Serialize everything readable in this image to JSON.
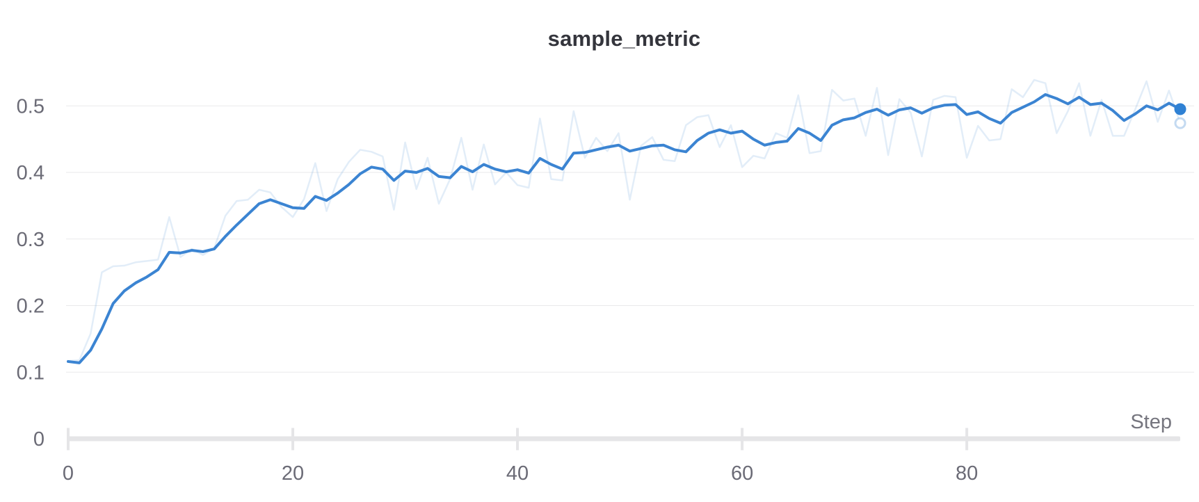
{
  "title": "sample_metric",
  "x_axis": {
    "label": "Step",
    "tick_values": [
      0,
      20,
      40,
      60,
      80
    ],
    "tick_labels": [
      "0",
      "20",
      "40",
      "60",
      "80"
    ]
  },
  "y_axis": {
    "tick_values": [
      0,
      0.1,
      0.2,
      0.3,
      0.4,
      0.5
    ],
    "tick_labels": [
      "0",
      "0.1",
      "0.2",
      "0.3",
      "0.4",
      "0.5"
    ]
  },
  "colors": {
    "smoothed_line": "#3b84d2",
    "end_dot": "#2f81d4",
    "raw_line": "rgba(61, 132, 209, 0.15)",
    "raw_end_ring": "rgba(61, 132, 209, 0.3)",
    "gridline": "#e9e9eb",
    "axis_bar": "#e5e5e7",
    "tick_text": "#6b6b76",
    "title_text": "#34353c"
  },
  "chart_data": {
    "type": "line",
    "title": "sample_metric",
    "xlabel": "Step",
    "ylabel": "",
    "xlim": [
      0,
      99
    ],
    "ylim": [
      0,
      0.55
    ],
    "grid": true,
    "legend": false,
    "x": [
      0,
      1,
      2,
      3,
      4,
      5,
      6,
      7,
      8,
      9,
      10,
      11,
      12,
      13,
      14,
      15,
      16,
      17,
      18,
      19,
      20,
      21,
      22,
      23,
      24,
      25,
      26,
      27,
      28,
      29,
      30,
      31,
      32,
      33,
      34,
      35,
      36,
      37,
      38,
      39,
      40,
      41,
      42,
      43,
      44,
      45,
      46,
      47,
      48,
      49,
      50,
      51,
      52,
      53,
      54,
      55,
      56,
      57,
      58,
      59,
      60,
      61,
      62,
      63,
      64,
      65,
      66,
      67,
      68,
      69,
      70,
      71,
      72,
      73,
      74,
      75,
      76,
      77,
      78,
      79,
      80,
      81,
      82,
      83,
      84,
      85,
      86,
      87,
      88,
      89,
      90,
      91,
      92,
      93,
      94,
      95,
      96,
      97,
      98,
      99
    ],
    "series": [
      {
        "name": "raw",
        "style": "faint",
        "values": [
          0.117,
          0.118,
          0.158,
          0.25,
          0.259,
          0.26,
          0.265,
          0.267,
          0.269,
          0.333,
          0.273,
          0.285,
          0.276,
          0.286,
          0.335,
          0.357,
          0.359,
          0.374,
          0.37,
          0.348,
          0.333,
          0.36,
          0.414,
          0.342,
          0.39,
          0.416,
          0.434,
          0.431,
          0.424,
          0.344,
          0.445,
          0.375,
          0.422,
          0.353,
          0.39,
          0.452,
          0.374,
          0.442,
          0.382,
          0.4,
          0.381,
          0.377,
          0.481,
          0.39,
          0.388,
          0.492,
          0.422,
          0.452,
          0.432,
          0.459,
          0.359,
          0.44,
          0.453,
          0.419,
          0.417,
          0.471,
          0.483,
          0.486,
          0.438,
          0.471,
          0.408,
          0.425,
          0.421,
          0.459,
          0.452,
          0.516,
          0.429,
          0.432,
          0.524,
          0.508,
          0.511,
          0.455,
          0.527,
          0.426,
          0.51,
          0.49,
          0.424,
          0.509,
          0.515,
          0.513,
          0.422,
          0.47,
          0.448,
          0.45,
          0.525,
          0.513,
          0.539,
          0.534,
          0.459,
          0.492,
          0.534,
          0.455,
          0.509,
          0.455,
          0.455,
          0.495,
          0.537,
          0.476,
          0.523,
          0.474
        ]
      },
      {
        "name": "smoothed",
        "style": "solid",
        "values": [
          0.116,
          0.114,
          0.133,
          0.165,
          0.203,
          0.222,
          0.234,
          0.243,
          0.254,
          0.28,
          0.279,
          0.283,
          0.281,
          0.285,
          0.304,
          0.321,
          0.337,
          0.353,
          0.359,
          0.353,
          0.347,
          0.346,
          0.364,
          0.358,
          0.369,
          0.382,
          0.398,
          0.408,
          0.405,
          0.388,
          0.402,
          0.4,
          0.406,
          0.394,
          0.392,
          0.409,
          0.401,
          0.412,
          0.405,
          0.401,
          0.404,
          0.399,
          0.421,
          0.412,
          0.405,
          0.429,
          0.43,
          0.434,
          0.438,
          0.441,
          0.432,
          0.436,
          0.44,
          0.441,
          0.434,
          0.431,
          0.448,
          0.459,
          0.464,
          0.459,
          0.462,
          0.45,
          0.441,
          0.445,
          0.447,
          0.466,
          0.459,
          0.448,
          0.471,
          0.479,
          0.482,
          0.49,
          0.495,
          0.486,
          0.494,
          0.497,
          0.489,
          0.497,
          0.501,
          0.502,
          0.487,
          0.491,
          0.481,
          0.474,
          0.49,
          0.498,
          0.506,
          0.517,
          0.511,
          0.503,
          0.513,
          0.502,
          0.504,
          0.493,
          0.478,
          0.488,
          0.5,
          0.494,
          0.504,
          0.495
        ]
      }
    ]
  }
}
